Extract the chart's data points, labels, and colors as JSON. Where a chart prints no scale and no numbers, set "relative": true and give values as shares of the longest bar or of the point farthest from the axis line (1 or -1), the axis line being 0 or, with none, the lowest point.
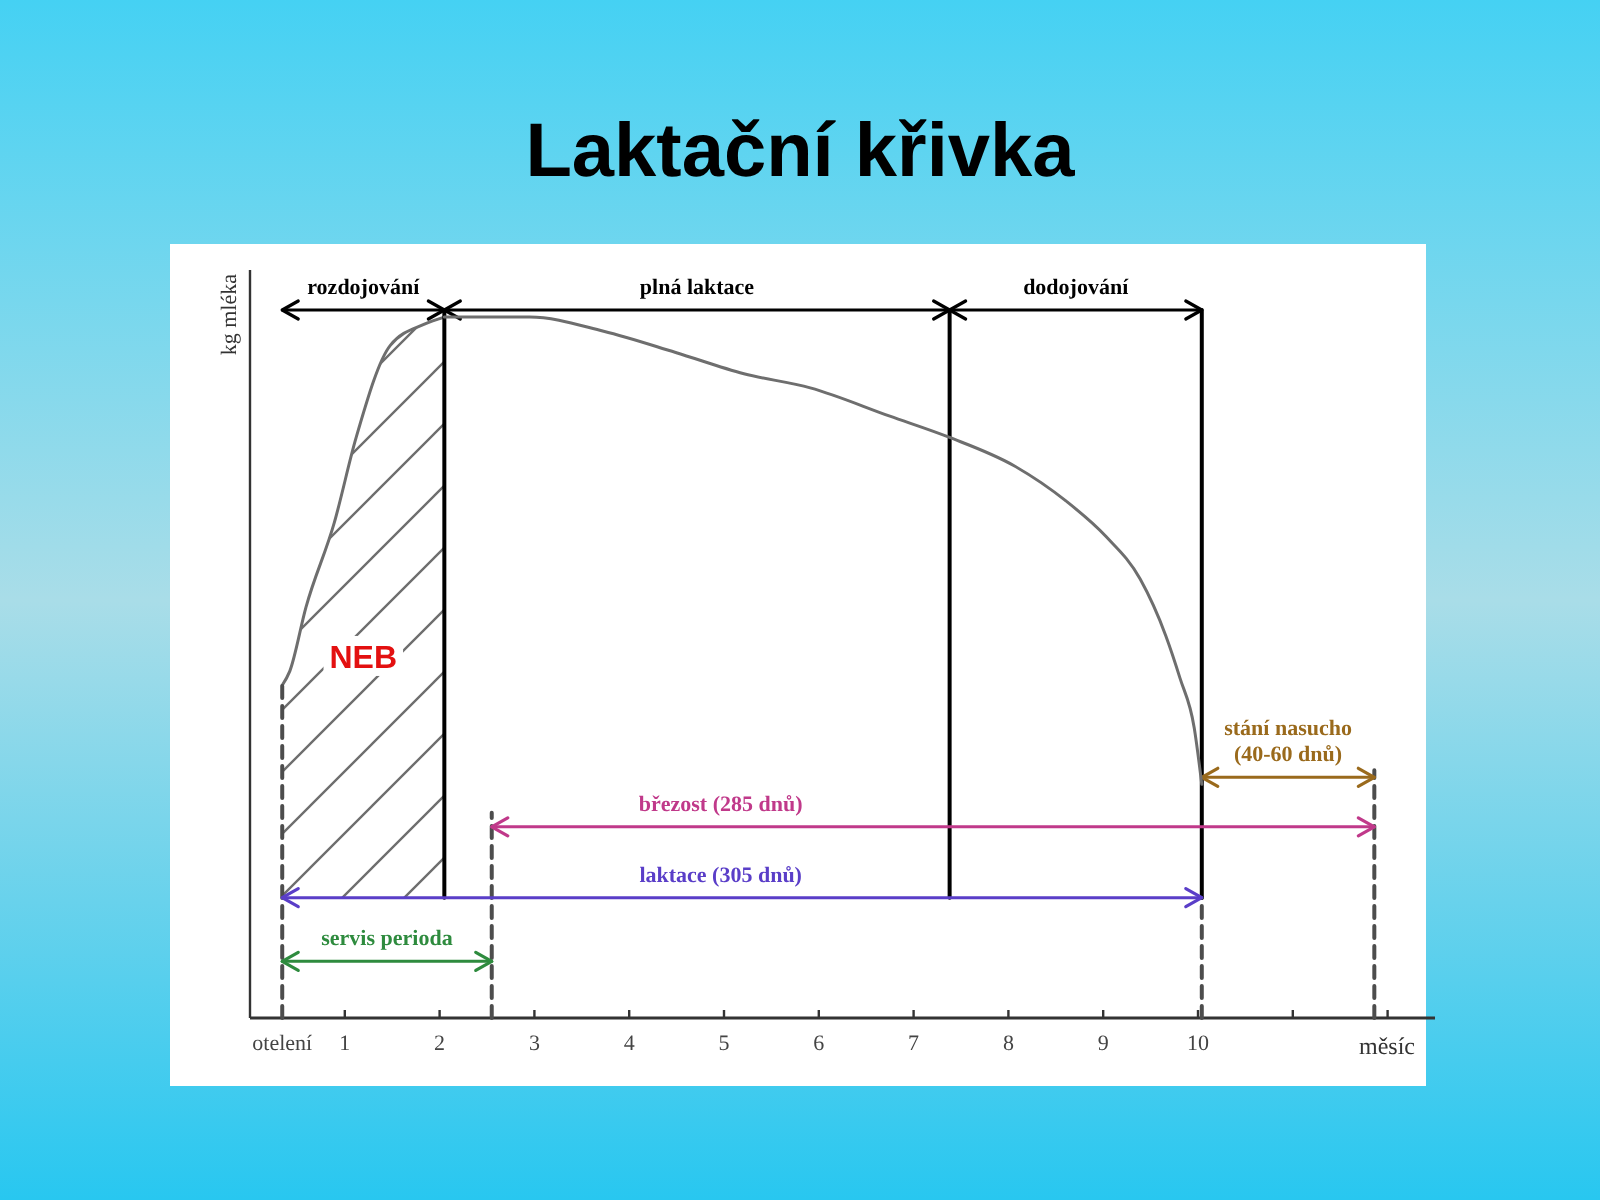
{
  "chart_data": {
    "type": "line",
    "title": "Laktační křivka",
    "xlabel": "měsíc",
    "ylabel": "kg mléka",
    "relative": true,
    "tick_labels": "x",
    "xlim": [
      0,
      12.5
    ],
    "xticks": [
      {
        "value": 0.34,
        "label": "otelení"
      },
      1,
      2,
      3,
      4,
      5,
      6,
      7,
      8,
      9,
      10,
      {
        "value": 11,
        "label": null
      },
      {
        "value": 12,
        "label": null
      }
    ],
    "series": [
      {
        "name": "NEB",
        "color": "#6e6e6e",
        "x": [
          0.34,
          0.42,
          0.59,
          0.89,
          1.12,
          1.48,
          1.84,
          2.05
        ],
        "values": [
          0.47,
          0.49,
          0.58,
          0.7,
          0.82,
          0.95,
          0.98,
          0.99
        ],
        "lower": [
          0.17,
          0.17,
          0.17,
          0.17,
          0.17,
          0.17,
          0.17,
          0.17
        ],
        "upper": [
          0.47,
          0.49,
          0.58,
          0.7,
          0.82,
          0.95,
          0.98,
          0.99
        ]
      },
      {
        "color": "#4d4d4d",
        "line_style": "dashed",
        "x": [
          0.34,
          0.34
        ],
        "values": [
          0,
          0.47
        ]
      },
      {
        "color": "#4d4d4d",
        "line_style": "dashed",
        "x": [
          2.55,
          2.55
        ],
        "values": [
          0,
          0.29
        ]
      },
      {
        "color": "#4d4d4d",
        "line_style": "dashed",
        "x": [
          10.04,
          10.04
        ],
        "values": [
          0,
          0.17
        ]
      },
      {
        "color": "#4d4d4d",
        "line_style": "dashed",
        "x": [
          11.86,
          11.86
        ],
        "values": [
          0,
          0.35
        ]
      },
      {
        "color": "#000000",
        "x": [
          2.05,
          2.05
        ],
        "values": [
          0.17,
          1
        ]
      },
      {
        "color": "#000000",
        "x": [
          7.38,
          7.38
        ],
        "values": [
          0.17,
          1
        ]
      },
      {
        "color": "#000000",
        "x": [
          10.04,
          10.04
        ],
        "values": [
          0.17,
          1
        ]
      },
      {
        "name": "rozdojování",
        "color": "#000000",
        "x": [
          0.34,
          2.05
        ],
        "values": [
          1,
          1
        ]
      },
      {
        "name": "plná laktace",
        "color": "#000000",
        "x": [
          2.05,
          7.38
        ],
        "values": [
          1,
          1
        ]
      },
      {
        "name": "dodojování",
        "color": "#000000",
        "x": [
          7.38,
          10.04
        ],
        "values": [
          1,
          1
        ]
      },
      {
        "name": "březost (285 dnů)",
        "color": "#c0398a",
        "x": [
          2.55,
          11.86
        ],
        "values": [
          0.27,
          0.27
        ]
      },
      {
        "name": "laktace (305 dnů)",
        "color": "#5a3ec8",
        "x": [
          0.34,
          10.04
        ],
        "values": [
          0.17,
          0.17
        ]
      },
      {
        "name": "servis perioda",
        "color": "#2e8b3e",
        "x": [
          0.34,
          2.55
        ],
        "values": [
          0.08,
          0.08
        ]
      },
      {
        "name": "stání nasucho (40-60 dnů)",
        "color": "#9a6a1c",
        "x": [
          10.04,
          11.86
        ],
        "values": [
          0.34,
          0.34
        ]
      },
      {
        "color": "#6e6e6e",
        "x": [
          2.05,
          2.95,
          3.73,
          4.49,
          5.21,
          5.91,
          6.75,
          7.38,
          8.06,
          8.61,
          9.03,
          9.39,
          9.66,
          9.81,
          9.96,
          10.04
        ],
        "values": [
          0.99,
          0.99,
          0.97,
          0.94,
          0.91,
          0.89,
          0.85,
          0.82,
          0.78,
          0.73,
          0.68,
          0.62,
          0.54,
          0.48,
          0.41,
          0.33
        ]
      }
    ]
  }
}
